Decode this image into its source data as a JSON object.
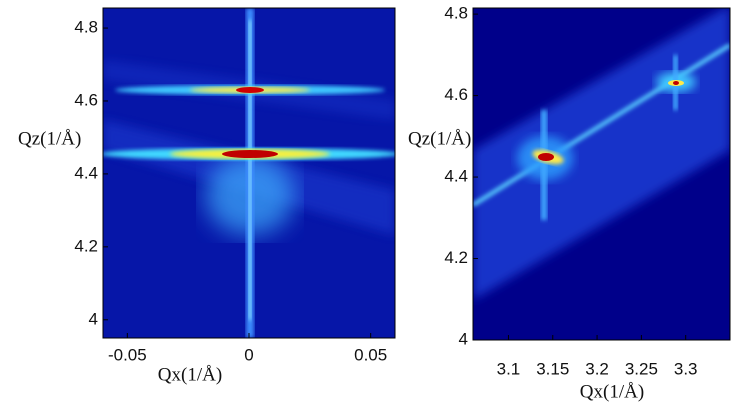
{
  "chart_data": [
    {
      "type": "map",
      "xlabel": "Qx(1/Å)",
      "ylabel": "Qz(1/Å)",
      "xlim": [
        -0.06,
        0.06
      ],
      "ylim": [
        3.95,
        4.855
      ],
      "xticks": [
        -0.05,
        0,
        0.05
      ],
      "yticks": [
        4,
        4.2,
        4.4,
        4.6,
        4.8
      ]
    },
    {
      "type": "map",
      "xlabel": "Qx(1/Å)",
      "ylabel": "Qz(1/Å)",
      "xlim": [
        3.06,
        3.35
      ],
      "ylim": [
        4,
        4.815
      ],
      "xticks": [
        3.1,
        3.15,
        3.2,
        3.25,
        3.3
      ],
      "yticks": [
        4,
        4.2,
        4.4,
        4.6,
        4.8
      ]
    }
  ]
}
